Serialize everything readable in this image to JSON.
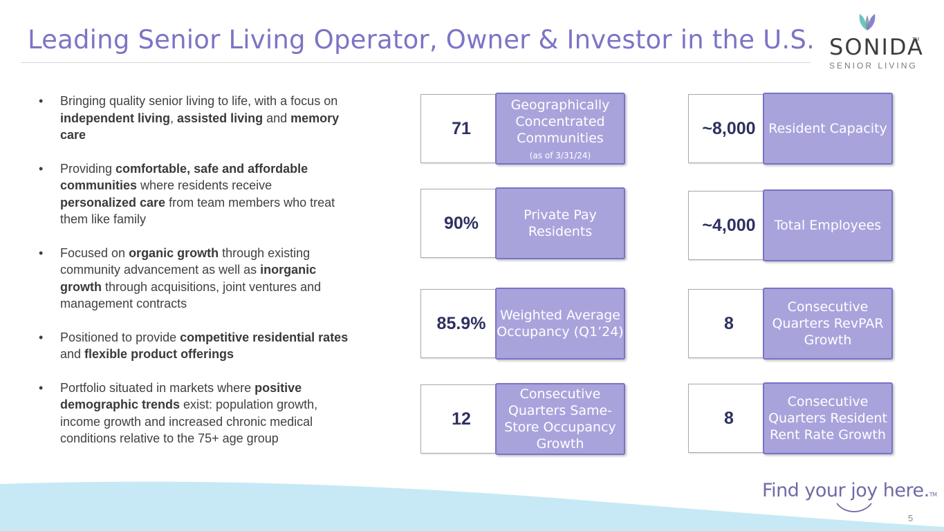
{
  "title": "Leading Senior Living Operator, Owner & Investor in the U.S.",
  "logo": {
    "wordmark": "SONIDA",
    "tm": "TM",
    "subtitle": "SENIOR LIVING",
    "icon": "butterfly-logo-icon"
  },
  "bullets": [
    [
      {
        "t": "Bringing quality senior living to life, with a focus on ",
        "b": false
      },
      {
        "t": "independent living",
        "b": true
      },
      {
        "t": ", ",
        "b": false
      },
      {
        "t": "assisted living",
        "b": true
      },
      {
        "t": " and ",
        "b": false
      },
      {
        "t": "memory care",
        "b": true
      }
    ],
    [
      {
        "t": "Providing ",
        "b": false
      },
      {
        "t": "comfortable, safe and affordable communities",
        "b": true
      },
      {
        "t": " where residents receive ",
        "b": false
      },
      {
        "t": "personalized care",
        "b": true
      },
      {
        "t": " from team members who treat them like family",
        "b": false
      }
    ],
    [
      {
        "t": "Focused on ",
        "b": false
      },
      {
        "t": "organic growth",
        "b": true
      },
      {
        "t": " through existing community advancement as well as ",
        "b": false
      },
      {
        "t": "inorganic growth",
        "b": true
      },
      {
        "t": " through acquisitions, joint ventures and management contracts",
        "b": false
      }
    ],
    [
      {
        "t": "Positioned to provide ",
        "b": false
      },
      {
        "t": "competitive residential rates",
        "b": true
      },
      {
        "t": " and ",
        "b": false
      },
      {
        "t": "flexible product offerings",
        "b": true
      }
    ],
    [
      {
        "t": "Portfolio situated in markets where ",
        "b": false
      },
      {
        "t": "positive demographic trends",
        "b": true
      },
      {
        "t": " exist: population growth, income growth and increased chronic medical conditions relative to the 75+ age group",
        "b": false
      }
    ]
  ],
  "stats": {
    "communities": {
      "value": "71",
      "label": "Geographically Concentrated Communities",
      "note": "(as of 3/31/24)"
    },
    "resident_capacity": {
      "value": "~8,000",
      "label": "Resident Capacity"
    },
    "private_pay": {
      "value": "90%",
      "label": "Private Pay Residents"
    },
    "employees": {
      "value": "~4,000",
      "label": "Total Employees"
    },
    "occupancy": {
      "value": "85.9%",
      "label": "Weighted Average Occupancy (Q1’24)"
    },
    "revpar": {
      "value": "8",
      "label": "Consecutive Quarters RevPAR Growth"
    },
    "same_store": {
      "value": "12",
      "label": "Consecutive Quarters Same-Store Occupancy Growth"
    },
    "rent_rate": {
      "value": "8",
      "label": "Consecutive Quarters Resident Rent Rate Growth"
    }
  },
  "colors": {
    "title": "#7b74c6",
    "label_fill": "#a9a3dc",
    "label_border": "#7872c8",
    "value_text": "#2d3161",
    "wave": "#c7e9f5"
  },
  "footer": {
    "tagline": "Find your joy here.",
    "tagline_tm": "TM",
    "page_number": "5"
  }
}
